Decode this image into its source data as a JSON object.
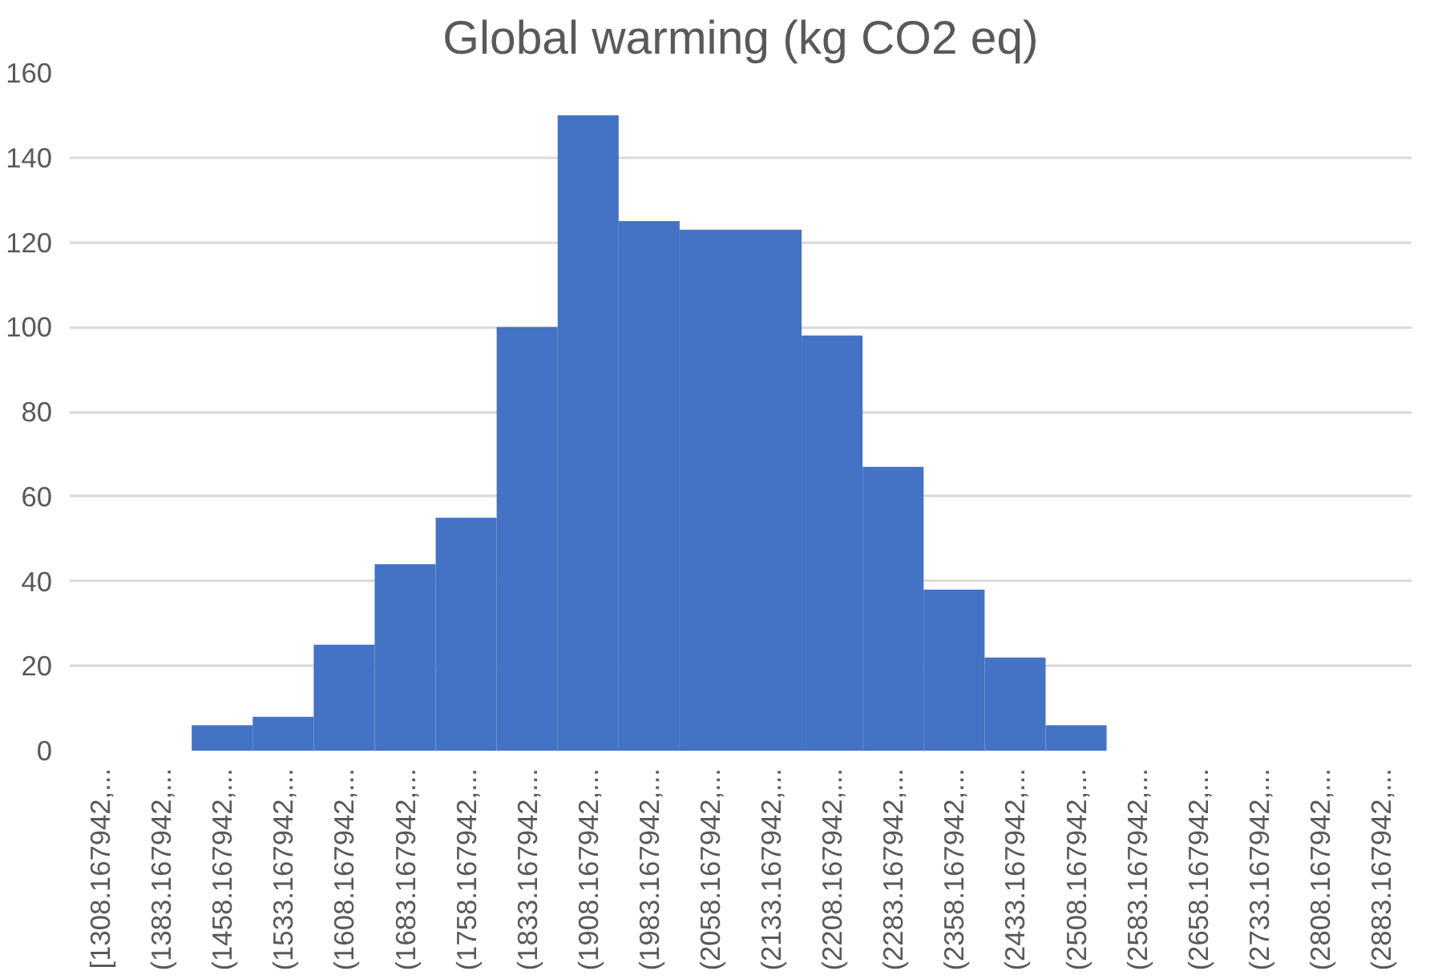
{
  "chart_data": {
    "type": "bar",
    "title": "Global warming (kg CO2 eq)",
    "categories": [
      "[1308.167942,...",
      "(1383.167942,...",
      "(1458.167942,...",
      "(1533.167942,...",
      "(1608.167942,...",
      "(1683.167942,...",
      "(1758.167942,...",
      "(1833.167942,...",
      "(1908.167942,...",
      "(1983.167942,...",
      "(2058.167942,...",
      "(2133.167942,...",
      "(2208.167942,...",
      "(2283.167942,...",
      "(2358.167942,...",
      "(2433.167942,...",
      "(2508.167942,...",
      "(2583.167942,...",
      "(2658.167942,...",
      "(2733.167942,...",
      "(2808.167942,...",
      "(2883.167942,..."
    ],
    "values": [
      0,
      0,
      6,
      8,
      25,
      44,
      55,
      100,
      150,
      125,
      123,
      123,
      98,
      67,
      38,
      22,
      6,
      0,
      0,
      0,
      0,
      0
    ],
    "color": "#4472c4",
    "ylim": [
      0,
      160
    ],
    "yticks": [
      0,
      20,
      40,
      60,
      80,
      100,
      120,
      140,
      160
    ],
    "grid": "y"
  }
}
